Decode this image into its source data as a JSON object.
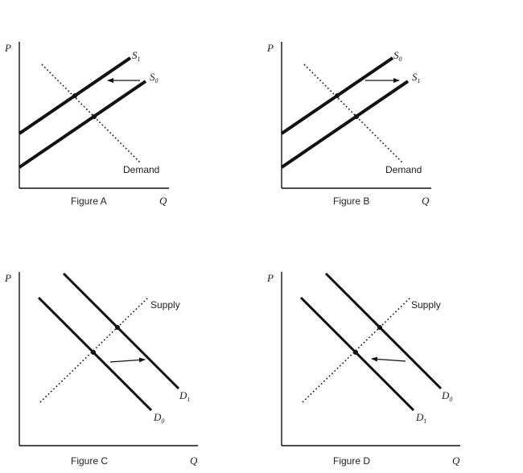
{
  "figures": [
    {
      "id": "A",
      "caption": "Figure A",
      "axis_p": "P",
      "axis_q": "Q",
      "curve_1": {
        "main": "S",
        "sub": "1"
      },
      "curve_0": {
        "main": "S",
        "sub": "0"
      },
      "dotted_label": "Demand"
    },
    {
      "id": "B",
      "caption": "Figure B",
      "axis_p": "P",
      "axis_q": "Q",
      "curve_1": {
        "main": "S",
        "sub": "0"
      },
      "curve_0": {
        "main": "S",
        "sub": "1"
      },
      "dotted_label": "Demand"
    },
    {
      "id": "C",
      "caption": "Figure C",
      "axis_p": "P",
      "axis_q": "Q",
      "curve_1": {
        "main": "D",
        "sub": "1"
      },
      "curve_0": {
        "main": "D",
        "sub": "0"
      },
      "dotted_label": "Supply"
    },
    {
      "id": "D",
      "caption": "Figure D",
      "axis_p": "P",
      "axis_q": "Q",
      "curve_1": {
        "main": "D",
        "sub": "0"
      },
      "curve_0": {
        "main": "D",
        "sub": "1"
      },
      "dotted_label": "Supply"
    }
  ],
  "colors": {
    "line": "#111111",
    "background": "#ffffff"
  }
}
